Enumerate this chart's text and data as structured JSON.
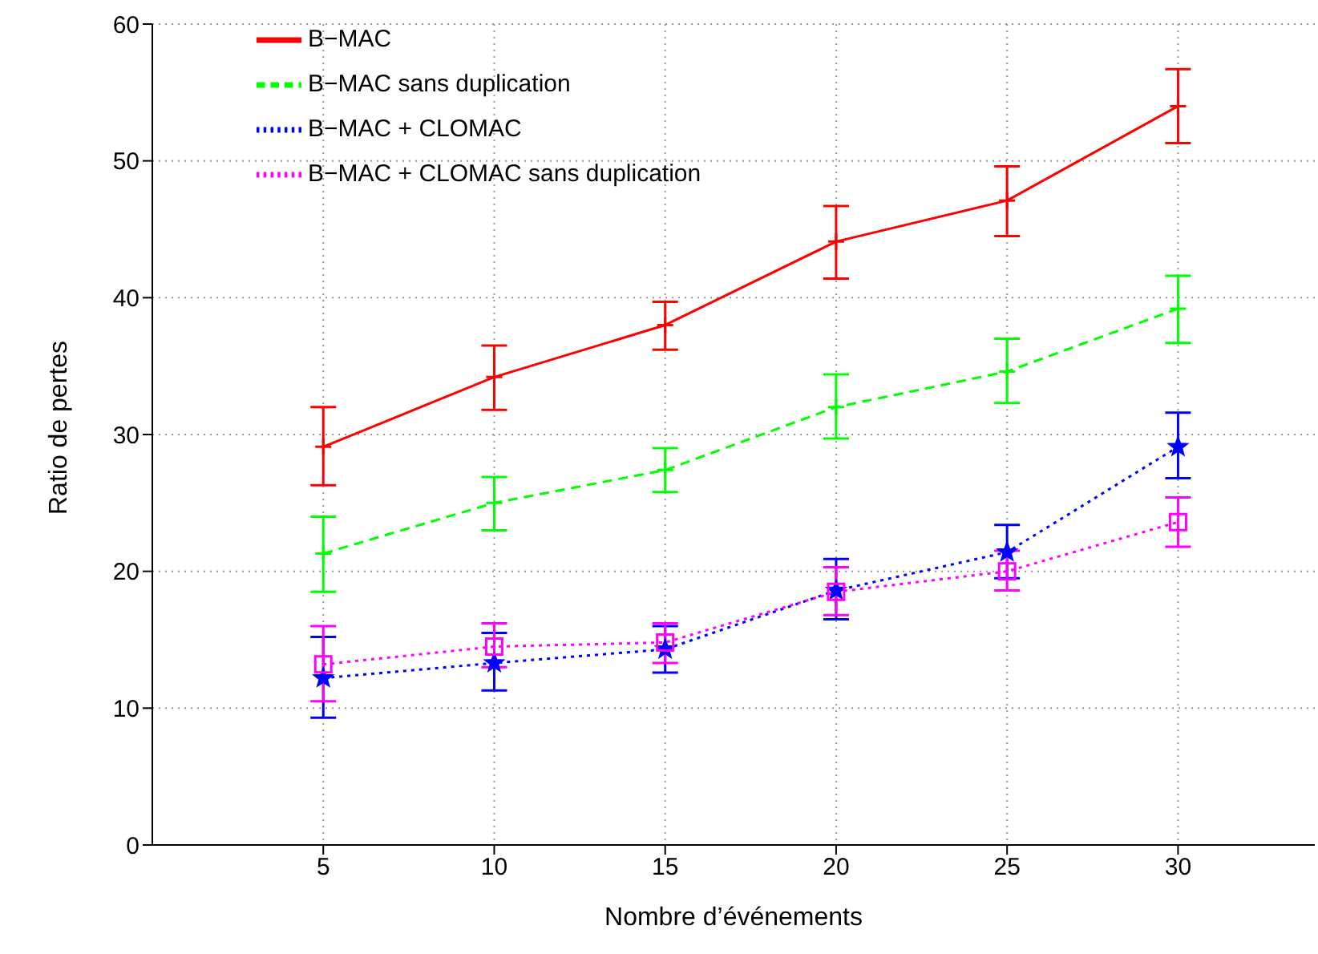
{
  "chart_data": {
    "type": "line",
    "xlabel": "Nombre d’événements",
    "ylabel": "Ratio de pertes",
    "x": [
      5,
      10,
      15,
      20,
      25,
      30
    ],
    "xlim": [
      0,
      34
    ],
    "xticks": [
      5,
      10,
      15,
      20,
      25,
      30
    ],
    "ylim": [
      0,
      60
    ],
    "yticks": [
      0,
      10,
      20,
      30,
      40,
      50,
      60
    ],
    "grid": true,
    "legend": "top",
    "series": [
      {
        "name": "B−MAC",
        "color": "#ff0000",
        "marker": "cross",
        "line_style": "solid",
        "values": [
          29.1,
          34.2,
          38.0,
          44.1,
          47.1,
          54.0
        ],
        "errors": [
          [
            26.3,
            32.0
          ],
          [
            31.8,
            36.5
          ],
          [
            36.2,
            39.7
          ],
          [
            41.4,
            46.7
          ],
          [
            44.5,
            49.6
          ],
          [
            51.3,
            56.7
          ]
        ]
      },
      {
        "name": "B−MAC sans duplication",
        "color": "#00ff00",
        "marker": "cross",
        "line_style": "dashed",
        "values": [
          21.3,
          25.0,
          27.4,
          32.0,
          34.6,
          39.2
        ],
        "errors": [
          [
            18.5,
            24.0
          ],
          [
            23.0,
            26.9
          ],
          [
            25.8,
            29.0
          ],
          [
            29.7,
            34.4
          ],
          [
            32.3,
            37.0
          ],
          [
            36.7,
            41.6
          ]
        ]
      },
      {
        "name": "B−MAC + CLOMAC",
        "color": "#0000ff",
        "marker": "star",
        "line_style": "dotted",
        "values": [
          12.2,
          13.3,
          14.3,
          18.6,
          21.4,
          29.1
        ],
        "errors": [
          [
            9.3,
            15.2
          ],
          [
            11.3,
            15.5
          ],
          [
            12.6,
            16.0
          ],
          [
            16.5,
            20.9
          ],
          [
            19.5,
            23.4
          ],
          [
            26.8,
            31.6
          ]
        ]
      },
      {
        "name": "B−MAC + CLOMAC sans duplication",
        "color": "#ff00ff",
        "marker": "square",
        "line_style": "dotted",
        "values": [
          13.2,
          14.5,
          14.8,
          18.5,
          20.0,
          23.6
        ],
        "errors": [
          [
            10.5,
            16.0
          ],
          [
            13.0,
            16.2
          ],
          [
            13.3,
            16.2
          ],
          [
            16.8,
            20.3
          ],
          [
            18.6,
            21.5
          ],
          [
            21.8,
            25.4
          ]
        ]
      }
    ]
  }
}
